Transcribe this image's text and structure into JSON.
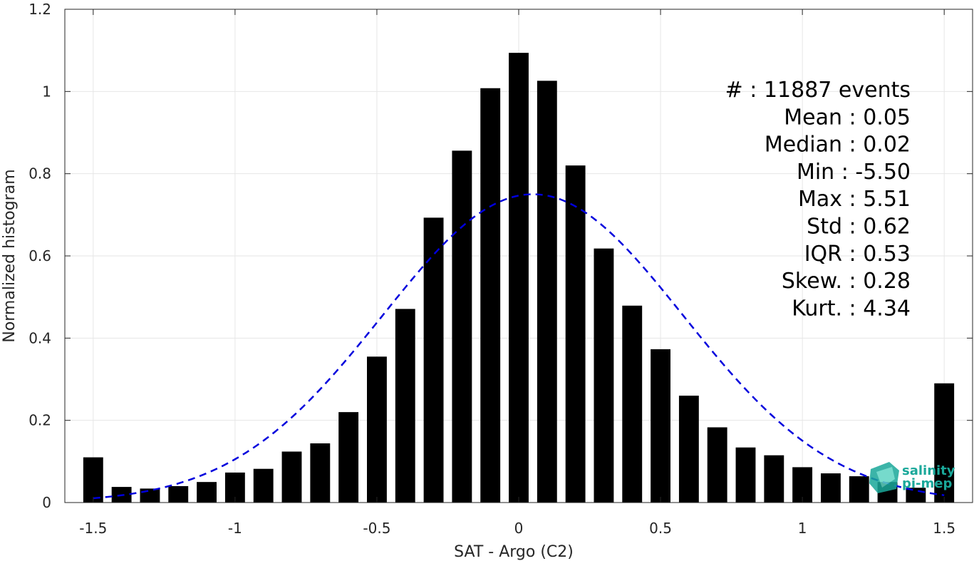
{
  "chart_data": {
    "type": "bar",
    "xlabel": "SAT - Argo (C2)",
    "ylabel": "Normalized histogram",
    "xlim": [
      -1.6,
      1.6
    ],
    "ylim": [
      0,
      1.2
    ],
    "xticks": [
      -1.5,
      -1,
      -0.5,
      0,
      0.5,
      1,
      1.5
    ],
    "xtick_labels": [
      "-1.5",
      "-1",
      "-0.5",
      "0",
      "0.5",
      "1",
      "1.5"
    ],
    "yticks": [
      0,
      0.2,
      0.4,
      0.6,
      0.8,
      1,
      1.2
    ],
    "ytick_labels": [
      "0",
      "0.2",
      "0.4",
      "0.6",
      "0.8",
      "1",
      "1.2"
    ],
    "grid": true,
    "bar_color": "#000000",
    "bin_width": 0.1,
    "x": [
      -1.5,
      -1.4,
      -1.3,
      -1.2,
      -1.1,
      -1.0,
      -0.9,
      -0.8,
      -0.7,
      -0.6,
      -0.5,
      -0.4,
      -0.3,
      -0.2,
      -0.1,
      0.0,
      0.1,
      0.2,
      0.3,
      0.4,
      0.5,
      0.6,
      0.7,
      0.8,
      0.9,
      1.0,
      1.1,
      1.2,
      1.3,
      1.4,
      1.5
    ],
    "values": [
      0.11,
      0.038,
      0.034,
      0.04,
      0.05,
      0.073,
      0.082,
      0.124,
      0.144,
      0.22,
      0.355,
      0.471,
      0.693,
      0.856,
      1.008,
      1.094,
      1.026,
      0.82,
      0.618,
      0.479,
      0.373,
      0.26,
      0.183,
      0.134,
      0.115,
      0.086,
      0.071,
      0.064,
      0.05,
      0.036,
      0.29
    ],
    "gaussian_fit": {
      "mean": 0.05,
      "std": 0.53,
      "peak": 0.75,
      "color": "#0000dd",
      "style": "dashed"
    },
    "stats": [
      "#  : 11887 events",
      "Mean : 0.05",
      "Median : 0.02",
      "Min : -5.50",
      "Max : 5.51",
      "Std : 0.62",
      "IQR : 0.53",
      "Skew. : 0.28",
      "Kurt. : 4.34"
    ]
  },
  "logo": {
    "line1": "salinity",
    "line2": "pi-mep",
    "color": "#1aa89a"
  }
}
